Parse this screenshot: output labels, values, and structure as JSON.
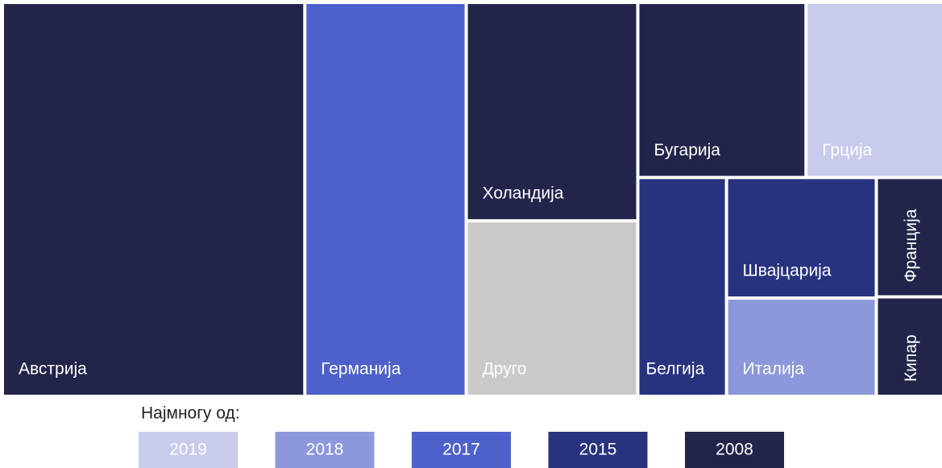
{
  "chart_data": {
    "type": "treemap",
    "categories": [
      "Австрија",
      "Германија",
      "Холандија",
      "Друго",
      "Бугарија",
      "Грција",
      "Белгија",
      "Швајцарија",
      "Италија",
      "Франција",
      "Кипар"
    ],
    "values": [
      178,
      95,
      56,
      45,
      44,
      36,
      29,
      27,
      22,
      12,
      10
    ],
    "colors": [
      "#23244a",
      "#4e60cb",
      "#23244a",
      "#cacaca",
      "#23244a",
      "#c8cbec",
      "#283380",
      "#283380",
      "#8d97dc",
      "#23244a",
      "#23244a"
    ],
    "legend_title": "Најмногу од:",
    "legend": [
      {
        "name": "2019",
        "color": "#c8cbec"
      },
      {
        "name": "2018",
        "color": "#8d97dc"
      },
      {
        "name": "2017",
        "color": "#4e60cb"
      },
      {
        "name": "2015",
        "color": "#283380"
      },
      {
        "name": "2008",
        "color": "#23244a"
      }
    ]
  }
}
